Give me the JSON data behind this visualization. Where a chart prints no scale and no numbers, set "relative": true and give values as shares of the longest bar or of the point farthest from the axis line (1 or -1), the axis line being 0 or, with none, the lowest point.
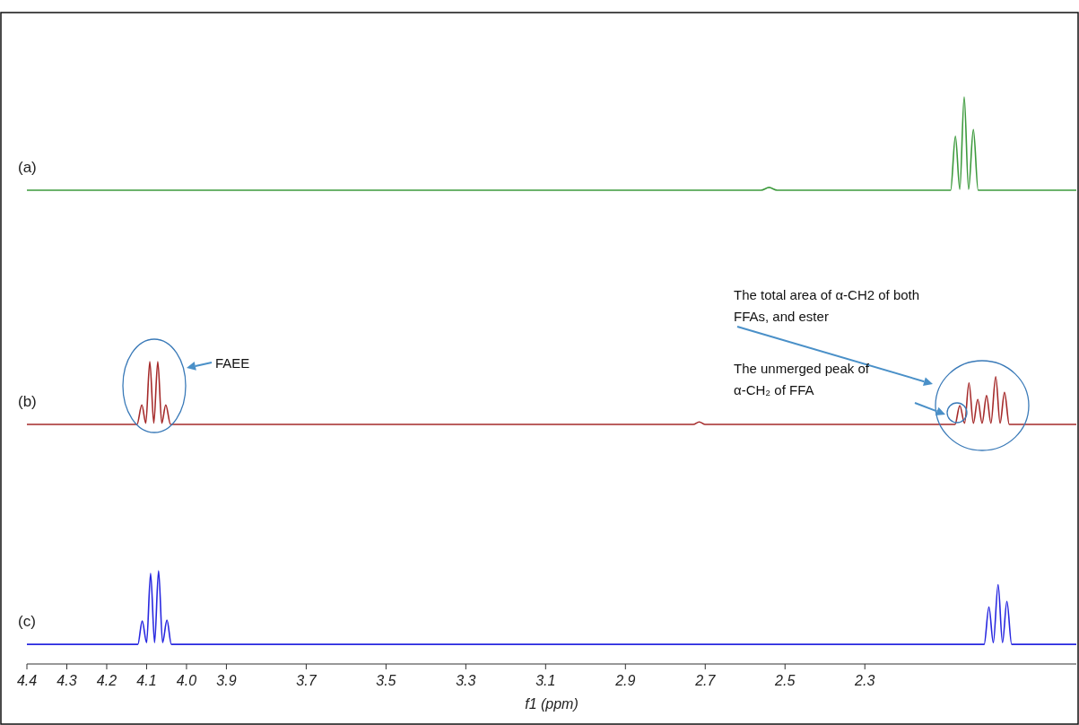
{
  "chart_data": [
    {
      "type": "line",
      "relative": true,
      "xlim": [
        4.4,
        1.77
      ],
      "tick_labels": false,
      "series": [
        {
          "name": "(a)",
          "color": "#3c9a3c",
          "x": [
            4.4,
            2.56,
            2.54,
            2.52,
            2.085,
            2.073,
            2.062,
            2.051,
            2.04,
            2.028,
            2.016,
            1.77
          ],
          "values": [
            0,
            0,
            0.03,
            0,
            0,
            0.58,
            0.01,
            1,
            0.01,
            0.65,
            0,
            0
          ]
        }
      ]
    },
    {
      "type": "line",
      "relative": true,
      "xlim": [
        4.4,
        1.77
      ],
      "tick_labels": false,
      "series": [
        {
          "name": "(b)",
          "color": "#a52a2a",
          "x": [
            4.4,
            4.124,
            4.112,
            4.102,
            4.092,
            4.082,
            4.072,
            4.062,
            4.052,
            4.04,
            2.73,
            2.715,
            2.7,
            2.074,
            2.062,
            2.05,
            2.039,
            2.028,
            2.017,
            2.006,
            1.995,
            1.984,
            1.972,
            1.961,
            1.95,
            1.938,
            1.77
          ],
          "values": [
            0,
            0,
            0.31,
            0.02,
            1,
            0.02,
            1,
            0.02,
            0.31,
            0,
            0,
            0.04,
            0,
            0,
            0.3,
            0.02,
            0.66,
            0.02,
            0.4,
            0.02,
            0.46,
            0.02,
            0.76,
            0.02,
            0.51,
            0,
            0
          ]
        }
      ],
      "annotations": [
        "FAEE",
        "The total area of α-CH2 of both FFAs, and ester",
        "The unmerged peak of α-CH₂ of FFA"
      ]
    },
    {
      "type": "line",
      "relative": true,
      "xlim": [
        4.4,
        1.77
      ],
      "tick_labels": "x",
      "xlabel": "f1 (ppm)",
      "series": [
        {
          "name": "(c)",
          "color": "#2828e0",
          "x": [
            4.4,
            4.122,
            4.111,
            4.1,
            4.09,
            4.08,
            4.07,
            4.06,
            4.049,
            4.038,
            2.001,
            1.989,
            1.978,
            1.966,
            1.955,
            1.944,
            1.932,
            1.77
          ],
          "values": [
            0.21,
            0.21,
            0.46,
            0.23,
            0.97,
            0.23,
            1,
            0.23,
            0.47,
            0.21,
            0.21,
            0.61,
            0.23,
            0.85,
            0.23,
            0.67,
            0.21,
            0.21
          ]
        }
      ],
      "xticks": [
        4.4,
        4.3,
        4.2,
        4.1,
        {
          "value": 4.0,
          "label": "4.0"
        },
        3.9,
        3.7,
        3.5,
        3.3,
        3.1,
        2.9,
        2.7,
        2.5,
        2.3
      ]
    }
  ]
}
